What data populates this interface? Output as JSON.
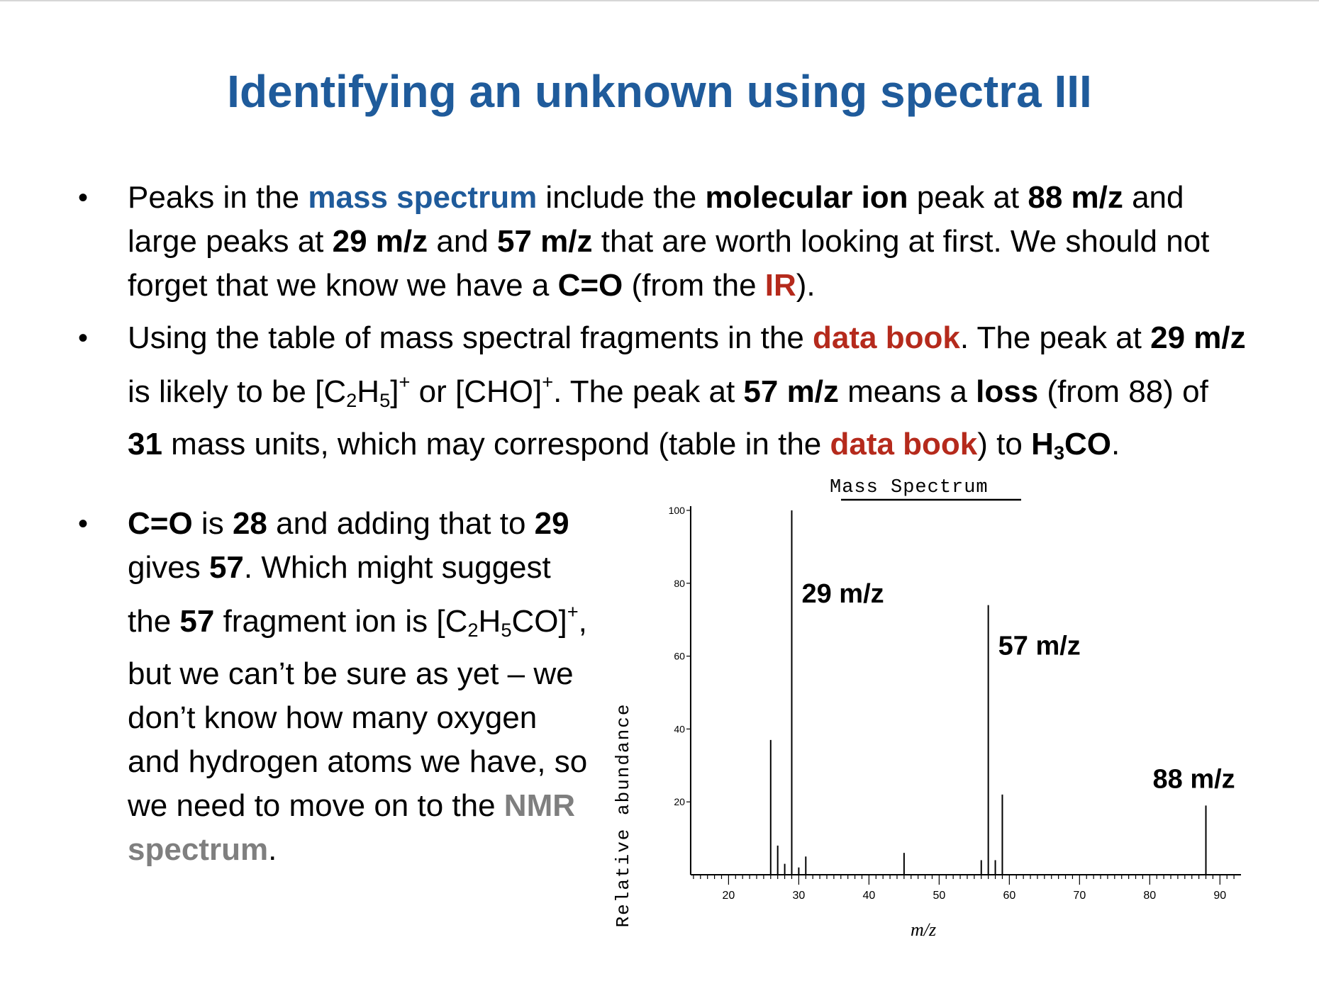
{
  "slide": {
    "title": "Identifying an unknown using spectra III",
    "bullet_glyph": "•",
    "bullet1": {
      "t1": "Peaks in the ",
      "t2": "mass spectrum",
      "t3": " include the ",
      "t4": "molecular ion",
      "t5": " peak at ",
      "t6": "88 m/z",
      "t7": " and large peaks at ",
      "t8": "29 m/z",
      "t9": " and ",
      "t10": "57 m/z",
      "t11": " that are worth looking at first. We should not forget that we know we have a ",
      "t12": "C=O",
      "t13": " (from the ",
      "t14": "IR",
      "t15": ")."
    },
    "bullet2": {
      "t1": "Using the table of mass spectral fragments in the ",
      "t2": "data book",
      "t3": ". The peak at ",
      "t4": "29 m/z",
      "t5": " is likely to be [C",
      "t6": "2",
      "t7": "H",
      "t8": "5",
      "t9": "]",
      "t10": "+",
      "t11": " or [CHO]",
      "t12": "+",
      "t13": ". The peak at ",
      "t14": "57 m/z",
      "t15": " means a ",
      "t16": "loss",
      "t17": " (from 88) of ",
      "t18": "31",
      "t19": " mass units, which may correspond (table in the ",
      "t20": "data book",
      "t21": ") to ",
      "t22": "H",
      "t23": "3",
      "t24": "CO",
      "t25": "."
    },
    "bullet3": {
      "t1": "C=O",
      "t2": " is ",
      "t3": "28",
      "t4": " and adding that to ",
      "t5": "29",
      "t6": " gives ",
      "t7": "57",
      "t8": ". Which might suggest the ",
      "t9": "57",
      "t10": " fragment ion is [C",
      "t11": "2",
      "t12": "H",
      "t13": "5",
      "t14": "CO]",
      "t15": "+",
      "t16": ", but we can’t be sure as yet – we don’t know how many oxygen and hydrogen atoms we have, so we need to move on to the ",
      "t17": "NMR spectrum",
      "t18": "."
    },
    "colors": {
      "title": "#1f5b9b",
      "highlight_blue": "#1f5b9b",
      "highlight_red": "#b52a1c",
      "highlight_grey": "#7f7f7f"
    }
  },
  "chart_data": {
    "type": "bar",
    "title": "Mass Spectrum",
    "xlabel": "m/z",
    "ylabel": "Relative abundance",
    "xlim": [
      14,
      93
    ],
    "ylim": [
      0,
      100
    ],
    "xticks": [
      20,
      30,
      40,
      50,
      60,
      70,
      80,
      90
    ],
    "yticks": [
      20,
      40,
      60,
      80,
      100
    ],
    "peaks": [
      {
        "x": 26,
        "y": 37
      },
      {
        "x": 27,
        "y": 8
      },
      {
        "x": 28,
        "y": 3
      },
      {
        "x": 29,
        "y": 100
      },
      {
        "x": 30,
        "y": 2
      },
      {
        "x": 31,
        "y": 5
      },
      {
        "x": 45,
        "y": 6
      },
      {
        "x": 56,
        "y": 4
      },
      {
        "x": 57,
        "y": 74
      },
      {
        "x": 58,
        "y": 4
      },
      {
        "x": 59,
        "y": 22
      },
      {
        "x": 88,
        "y": 19
      }
    ],
    "annotations": [
      {
        "text": "29 m/z",
        "x": 29,
        "y": 100
      },
      {
        "text": "57 m/z",
        "x": 57,
        "y": 74
      },
      {
        "text": "88 m/z",
        "x": 88,
        "y": 19
      }
    ],
    "grid": false
  }
}
